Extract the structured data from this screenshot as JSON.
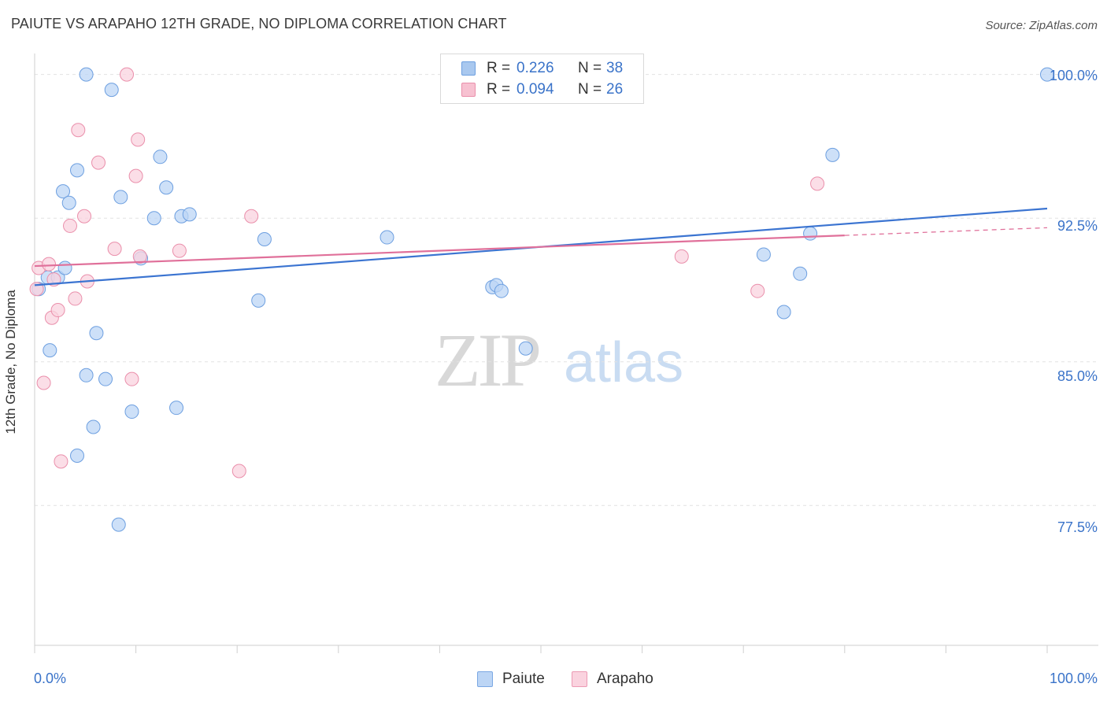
{
  "title": "PAIUTE VS ARAPAHO 12TH GRADE, NO DIPLOMA CORRELATION CHART",
  "source": "Source: ZipAtlas.com",
  "watermark": {
    "zip": "ZIP",
    "atlas": "atlas"
  },
  "legend_top": [
    {
      "r_label": "R =",
      "r_value": "0.226",
      "n_label": "N =",
      "n_value": "38",
      "color": "#a9c8ef",
      "border": "#6d9fe0"
    },
    {
      "r_label": "R =",
      "r_value": "0.094",
      "n_label": "N =",
      "n_value": "26",
      "color": "#f7c1d1",
      "border": "#ea8fab"
    }
  ],
  "legend_bottom": [
    {
      "label": "Paiute",
      "color": "#bcd5f5",
      "border": "#7aa7e3"
    },
    {
      "label": "Arapaho",
      "color": "#fad3df",
      "border": "#ec9ab4"
    }
  ],
  "chart_data": {
    "type": "scatter",
    "ylabel": "12th Grade, No Diploma",
    "xlabel": "",
    "x_tick_labels": [
      "0.0%",
      "100.0%"
    ],
    "y_tick_labels": [
      "100.0%",
      "92.5%",
      "85.0%",
      "77.5%"
    ],
    "y_tick_values": [
      100.0,
      92.5,
      85.0,
      77.5
    ],
    "xlim": [
      0,
      100
    ],
    "ylim": [
      70.2,
      101.3
    ],
    "grid": true,
    "series": [
      {
        "name": "Paiute",
        "color": "#6d9fe0",
        "fill": "#bcd5f5",
        "trend": {
          "x": [
            0,
            100
          ],
          "y": [
            89.0,
            93.0
          ]
        },
        "points": [
          [
            0.4,
            88.8
          ],
          [
            1.3,
            89.4
          ],
          [
            1.5,
            85.6
          ],
          [
            2.3,
            89.4
          ],
          [
            2.8,
            93.9
          ],
          [
            3.0,
            89.9
          ],
          [
            3.4,
            93.3
          ],
          [
            4.2,
            80.1
          ],
          [
            4.2,
            95.0
          ],
          [
            5.1,
            84.3
          ],
          [
            5.8,
            81.6
          ],
          [
            6.1,
            86.5
          ],
          [
            5.1,
            100.0
          ],
          [
            7.0,
            84.1
          ],
          [
            7.6,
            99.2
          ],
          [
            8.3,
            76.5
          ],
          [
            8.5,
            93.6
          ],
          [
            9.6,
            82.4
          ],
          [
            10.5,
            90.4
          ],
          [
            11.8,
            92.5
          ],
          [
            12.4,
            95.7
          ],
          [
            13.0,
            94.1
          ],
          [
            14.0,
            82.6
          ],
          [
            14.5,
            92.6
          ],
          [
            15.3,
            92.7
          ],
          [
            22.1,
            88.2
          ],
          [
            22.7,
            91.4
          ],
          [
            34.8,
            91.5
          ],
          [
            45.2,
            88.9
          ],
          [
            45.6,
            89.0
          ],
          [
            46.1,
            88.7
          ],
          [
            48.5,
            85.7
          ],
          [
            72.0,
            90.6
          ],
          [
            74.0,
            87.6
          ],
          [
            75.6,
            89.6
          ],
          [
            76.6,
            91.7
          ],
          [
            78.8,
            95.8
          ],
          [
            100.0,
            100.0
          ]
        ]
      },
      {
        "name": "Arapaho",
        "color": "#ea8fab",
        "fill": "#fad3df",
        "trend": {
          "x": [
            0,
            80
          ],
          "y": [
            90.0,
            91.6
          ]
        },
        "trend_dashed": {
          "x": [
            80,
            100
          ],
          "y": [
            91.6,
            92.0
          ]
        },
        "points": [
          [
            0.2,
            88.8
          ],
          [
            0.4,
            89.9
          ],
          [
            0.9,
            83.9
          ],
          [
            1.4,
            90.1
          ],
          [
            1.7,
            87.3
          ],
          [
            1.9,
            89.3
          ],
          [
            2.3,
            87.7
          ],
          [
            2.6,
            79.8
          ],
          [
            3.5,
            92.1
          ],
          [
            4.0,
            88.3
          ],
          [
            4.3,
            97.1
          ],
          [
            4.9,
            92.6
          ],
          [
            5.2,
            89.2
          ],
          [
            6.3,
            95.4
          ],
          [
            7.9,
            90.9
          ],
          [
            9.1,
            100.0
          ],
          [
            9.6,
            84.1
          ],
          [
            10.0,
            94.7
          ],
          [
            10.2,
            96.6
          ],
          [
            10.4,
            90.5
          ],
          [
            14.3,
            90.8
          ],
          [
            20.2,
            79.3
          ],
          [
            21.4,
            92.6
          ],
          [
            63.9,
            90.5
          ],
          [
            71.4,
            88.7
          ],
          [
            77.3,
            94.3
          ]
        ]
      }
    ]
  }
}
